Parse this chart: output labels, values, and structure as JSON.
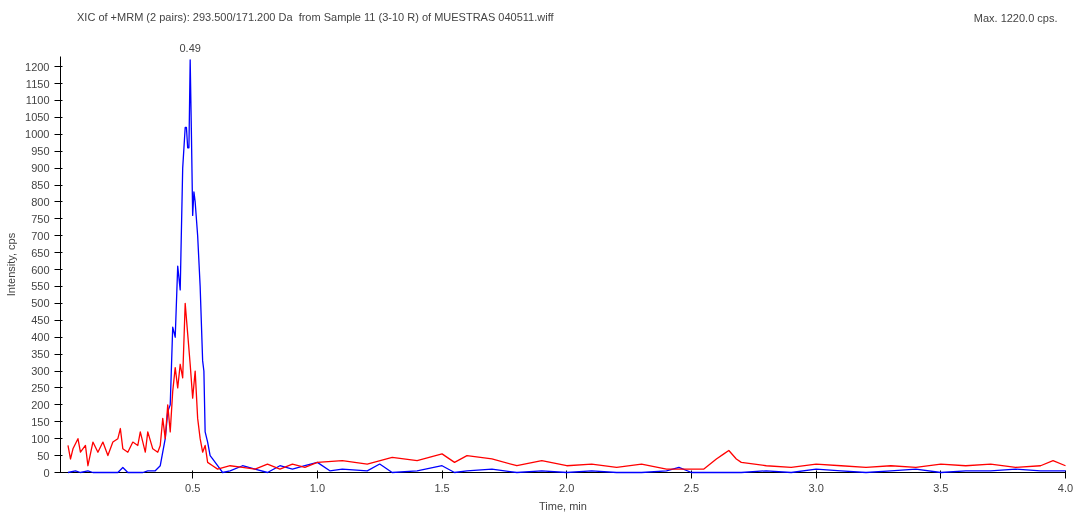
{
  "chart_data": {
    "type": "line",
    "xlabel": "Time, min",
    "ylabel": "Intensity, cps",
    "annotations": [
      "Max. 1220.0 cps.",
      {
        "text": "0.49",
        "x": 0.49,
        "y": 1220
      }
    ],
    "xlim": [
      -0.03,
      4.0
    ],
    "ylim": [
      0,
      1230
    ],
    "xticks": [
      0.5,
      {
        "value": 1,
        "label": "1.0"
      },
      1.5,
      {
        "value": 2,
        "label": "2.0"
      },
      2.5,
      {
        "value": 3,
        "label": "3.0"
      },
      3.5,
      {
        "value": 4,
        "label": "4.0"
      }
    ],
    "yticks": [
      0,
      50,
      100,
      150,
      200,
      250,
      300,
      350,
      400,
      450,
      500,
      550,
      600,
      650,
      700,
      750,
      800,
      850,
      900,
      950,
      1000,
      1050,
      1100,
      1150,
      1200
    ],
    "grid": false,
    "legend": "top left",
    "marker": "none",
    "line_style": "solid",
    "series": [
      {
        "name": "XIC of +MRM (2 pairs): 293.500/171.200 Da  from Sample 11 (3-10 R) of MUESTRAS 040511.wiff",
        "color": "#0000ff",
        "x": [
          0.0,
          0.03,
          0.05,
          0.08,
          0.1,
          0.2,
          0.22,
          0.24,
          0.3,
          0.32,
          0.35,
          0.37,
          0.39,
          0.4,
          0.41,
          0.42,
          0.43,
          0.44,
          0.45,
          0.46,
          0.47,
          0.475,
          0.48,
          0.485,
          0.49,
          0.495,
          0.5,
          0.505,
          0.51,
          0.52,
          0.53,
          0.54,
          0.545,
          0.55,
          0.56,
          0.57,
          0.58,
          0.6,
          0.62,
          0.65,
          0.7,
          0.75,
          0.8,
          0.85,
          0.9,
          0.95,
          1.0,
          1.05,
          1.1,
          1.2,
          1.25,
          1.3,
          1.4,
          1.5,
          1.55,
          1.6,
          1.7,
          1.8,
          1.9,
          2.0,
          2.1,
          2.2,
          2.3,
          2.4,
          2.45,
          2.5,
          2.6,
          2.7,
          2.8,
          2.9,
          3.0,
          3.1,
          3.2,
          3.3,
          3.4,
          3.5,
          3.6,
          3.7,
          3.8,
          3.9,
          4.0
        ],
        "values": [
          0,
          5,
          0,
          5,
          0,
          0,
          15,
          0,
          0,
          5,
          5,
          20,
          100,
          180,
          200,
          430,
          400,
          610,
          540,
          900,
          1020,
          1020,
          960,
          960,
          1220,
          1000,
          760,
          830,
          800,
          700,
          550,
          330,
          300,
          120,
          90,
          50,
          40,
          20,
          0,
          5,
          20,
          10,
          0,
          20,
          10,
          20,
          30,
          5,
          10,
          5,
          25,
          0,
          5,
          20,
          0,
          5,
          10,
          0,
          5,
          0,
          5,
          0,
          0,
          5,
          15,
          0,
          0,
          0,
          5,
          0,
          10,
          5,
          0,
          5,
          10,
          0,
          5,
          5,
          10,
          5,
          5
        ]
      },
      {
        "color": "#ff0000",
        "x": [
          0.0,
          0.01,
          0.02,
          0.04,
          0.05,
          0.07,
          0.08,
          0.1,
          0.12,
          0.14,
          0.16,
          0.18,
          0.2,
          0.21,
          0.22,
          0.24,
          0.26,
          0.28,
          0.29,
          0.31,
          0.32,
          0.34,
          0.36,
          0.37,
          0.38,
          0.39,
          0.4,
          0.41,
          0.42,
          0.43,
          0.44,
          0.45,
          0.46,
          0.47,
          0.48,
          0.49,
          0.5,
          0.51,
          0.52,
          0.53,
          0.54,
          0.55,
          0.56,
          0.58,
          0.6,
          0.65,
          0.7,
          0.75,
          0.8,
          0.85,
          0.9,
          0.95,
          1.0,
          1.1,
          1.2,
          1.3,
          1.4,
          1.5,
          1.55,
          1.6,
          1.7,
          1.8,
          1.9,
          2.0,
          2.1,
          2.2,
          2.3,
          2.4,
          2.5,
          2.55,
          2.6,
          2.63,
          2.65,
          2.68,
          2.7,
          2.8,
          2.9,
          3.0,
          3.1,
          3.2,
          3.3,
          3.4,
          3.5,
          3.6,
          3.7,
          3.8,
          3.9,
          3.95,
          4.0
        ],
        "values": [
          80,
          40,
          70,
          100,
          60,
          80,
          20,
          90,
          60,
          90,
          50,
          90,
          100,
          130,
          70,
          60,
          90,
          80,
          120,
          60,
          120,
          70,
          60,
          80,
          160,
          100,
          200,
          120,
          240,
          310,
          250,
          320,
          280,
          500,
          410,
          320,
          220,
          300,
          160,
          100,
          60,
          80,
          30,
          20,
          10,
          20,
          15,
          10,
          25,
          10,
          25,
          15,
          30,
          35,
          25,
          45,
          35,
          55,
          30,
          50,
          40,
          20,
          35,
          20,
          25,
          15,
          25,
          10,
          10,
          10,
          40,
          55,
          65,
          40,
          30,
          20,
          15,
          25,
          20,
          15,
          20,
          15,
          25,
          20,
          25,
          15,
          20,
          35,
          20
        ]
      }
    ]
  }
}
